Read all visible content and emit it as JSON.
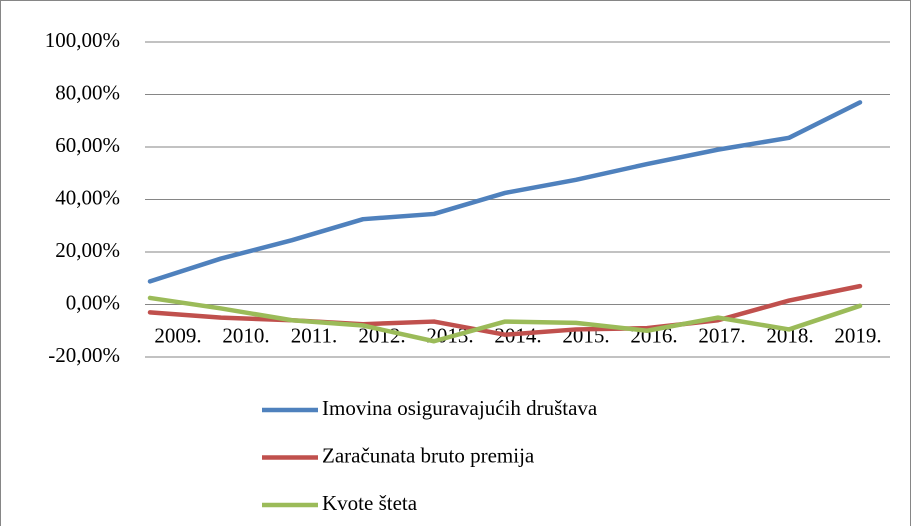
{
  "chart_data": {
    "type": "line",
    "categories": [
      "2009.",
      "2010.",
      "2011.",
      "2012.",
      "2013.",
      "2014.",
      "2015.",
      "2016.",
      "2017.",
      "2018.",
      "2019."
    ],
    "series": [
      {
        "name": "Imovina osiguravajućih društava",
        "color": "#4f81bd",
        "values": [
          8.8,
          17.5,
          24.5,
          32.5,
          34.5,
          42.5,
          47.5,
          53.5,
          59,
          63.5,
          77
        ]
      },
      {
        "name": "Zaračunata bruto premija",
        "color": "#c0504d",
        "values": [
          -3,
          -5,
          -6,
          -7.5,
          -6.5,
          -11.5,
          -9.5,
          -9,
          -6,
          1.5,
          7
        ]
      },
      {
        "name": "Kvote šteta",
        "color": "#9bbb59",
        "values": [
          2.5,
          -1.5,
          -6,
          -8,
          -14,
          -6.5,
          -7,
          -10,
          -5,
          -9.5,
          -0.5
        ]
      }
    ],
    "ylim": [
      -20,
      100
    ],
    "yticks": [
      {
        "value": -20,
        "label": "-20,00%"
      },
      {
        "value": 0,
        "label": "0,00%"
      },
      {
        "value": 20,
        "label": "20,00%"
      },
      {
        "value": 40,
        "label": "40,00%"
      },
      {
        "value": 60,
        "label": "60,00%"
      },
      {
        "value": 80,
        "label": "80,00%"
      },
      {
        "value": 100,
        "label": "100,00%"
      }
    ],
    "grid": true,
    "legend": "bottom"
  }
}
